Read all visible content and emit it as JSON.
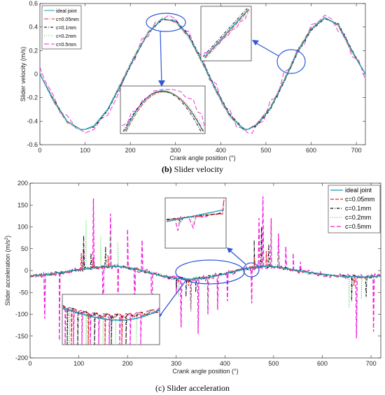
{
  "colors": {
    "ideal": "#1b98b3",
    "c005": "#e8242a",
    "c01": "#000000",
    "c02": "#57d357",
    "c05": "#f01dd8",
    "zoom": "#2f58d6"
  },
  "chart_data": [
    {
      "type": "line",
      "caption_label": "(b)",
      "caption_text": " Slider velocity",
      "xlabel": "Crank angle position (°)",
      "ylabel": "Slider velocity (m/s)",
      "xlim": [
        0,
        720
      ],
      "ylim": [
        -0.6,
        0.6
      ],
      "xticks": [
        0,
        100,
        200,
        300,
        400,
        500,
        600,
        700
      ],
      "yticks": [
        -0.6,
        -0.4,
        -0.2,
        0,
        0.2,
        0.4,
        0.6
      ],
      "ytick_labels": [
        "-0.6",
        "-0.4",
        "-0.2",
        "0",
        "0.2",
        "0.4",
        "0.6"
      ],
      "grid": false,
      "legend_position": "top-left",
      "series": [
        {
          "name": "ideal joint",
          "color_key": "ideal",
          "dash": "",
          "x": [
            0,
            30,
            60,
            90,
            100,
            120,
            150,
            180,
            210,
            240,
            270,
            300,
            330,
            360,
            390,
            420,
            450,
            460,
            480,
            510,
            540,
            570,
            600,
            630,
            660,
            690,
            720
          ],
          "y": [
            0,
            -0.22,
            -0.4,
            -0.47,
            -0.47,
            -0.44,
            -0.3,
            -0.08,
            0.15,
            0.35,
            0.47,
            0.45,
            0.32,
            0.1,
            -0.14,
            -0.35,
            -0.47,
            -0.47,
            -0.43,
            -0.29,
            -0.06,
            0.19,
            0.38,
            0.48,
            0.42,
            0.2,
            0
          ]
        },
        {
          "name": "c=0.05mm",
          "color_key": "c005",
          "dash": "6,2,1,2",
          "x": [
            0,
            30,
            60,
            90,
            100,
            120,
            150,
            180,
            210,
            240,
            270,
            300,
            330,
            360,
            390,
            420,
            450,
            460,
            480,
            510,
            540,
            570,
            600,
            630,
            660,
            690,
            720
          ],
          "y": [
            0,
            -0.23,
            -0.41,
            -0.47,
            -0.47,
            -0.44,
            -0.3,
            -0.07,
            0.16,
            0.36,
            0.47,
            0.44,
            0.31,
            0.09,
            -0.15,
            -0.36,
            -0.47,
            -0.47,
            -0.42,
            -0.28,
            -0.05,
            0.2,
            0.39,
            0.48,
            0.41,
            0.19,
            0
          ]
        },
        {
          "name": "c=0.1mm",
          "color_key": "c01",
          "dash": "4,2,1,2",
          "x": [
            0,
            30,
            60,
            90,
            100,
            120,
            150,
            180,
            210,
            240,
            270,
            300,
            330,
            360,
            390,
            420,
            450,
            460,
            480,
            510,
            540,
            570,
            600,
            630,
            660,
            690,
            720
          ],
          "y": [
            0,
            -0.21,
            -0.4,
            -0.47,
            -0.47,
            -0.45,
            -0.31,
            -0.09,
            0.14,
            0.35,
            0.46,
            0.46,
            0.33,
            0.11,
            -0.13,
            -0.34,
            -0.46,
            -0.47,
            -0.44,
            -0.3,
            -0.07,
            0.18,
            0.37,
            0.47,
            0.43,
            0.21,
            0
          ]
        },
        {
          "name": "c=0.2mm",
          "color_key": "c02",
          "dash": "1,2",
          "x": [
            0,
            30,
            60,
            90,
            100,
            120,
            150,
            180,
            210,
            240,
            270,
            300,
            330,
            360,
            390,
            420,
            450,
            460,
            480,
            510,
            540,
            570,
            600,
            630,
            660,
            690,
            720
          ],
          "y": [
            0,
            -0.24,
            -0.42,
            -0.48,
            -0.47,
            -0.43,
            -0.29,
            -0.06,
            0.17,
            0.37,
            0.48,
            0.44,
            0.3,
            0.08,
            -0.16,
            -0.37,
            -0.48,
            -0.47,
            -0.42,
            -0.27,
            -0.04,
            0.21,
            0.4,
            0.48,
            0.4,
            0.18,
            0
          ]
        },
        {
          "name": "c=0.5mm",
          "color_key": "c05",
          "dash": "7,3",
          "x": [
            0,
            10,
            30,
            45,
            60,
            80,
            90,
            100,
            120,
            135,
            150,
            170,
            180,
            200,
            210,
            225,
            240,
            255,
            270,
            285,
            300,
            315,
            330,
            345,
            360,
            375,
            390,
            405,
            420,
            435,
            450,
            460,
            470,
            480,
            495,
            510,
            525,
            540,
            555,
            570,
            585,
            600,
            615,
            630,
            645,
            660,
            675,
            690,
            705,
            720
          ],
          "y": [
            0.06,
            -0.05,
            -0.18,
            -0.33,
            -0.35,
            -0.46,
            -0.47,
            -0.5,
            -0.47,
            -0.38,
            -0.35,
            -0.2,
            -0.1,
            0.08,
            0.12,
            0.3,
            0.32,
            0.44,
            0.46,
            0.5,
            0.47,
            0.38,
            0.36,
            0.2,
            0.15,
            -0.05,
            -0.08,
            -0.28,
            -0.3,
            -0.45,
            -0.46,
            -0.5,
            -0.5,
            -0.42,
            -0.4,
            -0.22,
            -0.2,
            0.02,
            0.05,
            0.22,
            0.25,
            0.42,
            0.44,
            0.5,
            0.47,
            0.36,
            0.34,
            0.15,
            0.12,
            -0.05
          ]
        }
      ]
    },
    {
      "type": "line",
      "caption_text": "(c) Slider acceleration",
      "xlabel": "Crank angle position (°)",
      "ylabel_main": "Slider acceleration (m/s",
      "ylabel_sup": "2",
      "ylabel_end": ")",
      "xlim": [
        0,
        720
      ],
      "ylim": [
        -200,
        200
      ],
      "xticks": [
        0,
        100,
        200,
        300,
        400,
        500,
        600,
        700
      ],
      "yticks": [
        -200,
        -150,
        -100,
        -50,
        0,
        50,
        100,
        150,
        200
      ],
      "grid": false,
      "legend_position": "top-right",
      "series": [
        {
          "name": "ideal joint",
          "color_key": "ideal",
          "dash": "",
          "x": [
            0,
            30,
            60,
            90,
            120,
            150,
            180,
            210,
            240,
            270,
            300,
            330,
            360,
            390,
            420,
            450,
            480,
            510,
            540,
            570,
            600,
            630,
            660,
            690,
            720
          ],
          "y": [
            -12,
            -10,
            -5,
            0,
            5,
            8,
            10,
            5,
            -3,
            -12,
            -18,
            -20,
            -17,
            -10,
            -2,
            6,
            10,
            8,
            2,
            -4,
            -8,
            -12,
            -14,
            -15,
            -12
          ]
        },
        {
          "name": "c=0.05mm",
          "color_key": "c005",
          "dash": "5,2",
          "x": [],
          "y": []
        },
        {
          "name": "c=0.1mm",
          "color_key": "c01",
          "dash": "4,2,1,2",
          "x": [],
          "y": []
        },
        {
          "name": "c=0.2mm",
          "color_key": "c02",
          "dash": "1,2",
          "x": [],
          "y": []
        },
        {
          "name": "c=0.5mm",
          "color_key": "c05",
          "dash": "6,3",
          "x": [],
          "y": []
        }
      ],
      "spikes": {
        "c05": [
          [
            30,
            -110
          ],
          [
            60,
            -160
          ],
          [
            110,
            50
          ],
          [
            130,
            165
          ],
          [
            150,
            -120
          ],
          [
            165,
            130
          ],
          [
            180,
            -145
          ],
          [
            200,
            95
          ],
          [
            215,
            -150
          ],
          [
            230,
            70
          ],
          [
            250,
            -160
          ],
          [
            300,
            -55
          ],
          [
            310,
            -130
          ],
          [
            330,
            -90
          ],
          [
            345,
            -145
          ],
          [
            365,
            -100
          ],
          [
            385,
            -90
          ],
          [
            405,
            -70
          ],
          [
            455,
            -75
          ],
          [
            470,
            120
          ],
          [
            478,
            170
          ],
          [
            495,
            120
          ],
          [
            510,
            85
          ],
          [
            525,
            55
          ],
          [
            540,
            40
          ],
          [
            555,
            20
          ],
          [
            670,
            -155
          ],
          [
            705,
            -140
          ]
        ],
        "c02": [
          [
            115,
            115
          ],
          [
            145,
            80
          ],
          [
            165,
            85
          ],
          [
            180,
            65
          ],
          [
            305,
            -60
          ],
          [
            330,
            -95
          ],
          [
            365,
            -75
          ],
          [
            495,
            85
          ],
          [
            510,
            40
          ],
          [
            655,
            -85
          ],
          [
            680,
            -65
          ]
        ],
        "c01": [
          [
            110,
            80
          ],
          [
            125,
            40
          ],
          [
            155,
            55
          ],
          [
            300,
            -40
          ],
          [
            320,
            -60
          ],
          [
            340,
            -50
          ],
          [
            460,
            70
          ],
          [
            475,
            100
          ],
          [
            490,
            60
          ],
          [
            660,
            -70
          ],
          [
            690,
            -60
          ]
        ],
        "c005": [
          [
            105,
            40
          ],
          [
            130,
            30
          ],
          [
            160,
            35
          ],
          [
            305,
            -25
          ],
          [
            325,
            -35
          ],
          [
            460,
            30
          ],
          [
            485,
            45
          ],
          [
            665,
            -35
          ]
        ]
      },
      "legend": [
        {
          "name": "ideal joint",
          "color_key": "ideal",
          "dash": ""
        },
        {
          "name": "c=0.05mm",
          "color_key": "c005",
          "dash": "5,2"
        },
        {
          "name": "c=0.1mm",
          "color_key": "c01",
          "dash": "4,2,1,2"
        },
        {
          "name": "c=0.2mm",
          "color_key": "c02",
          "dash": "1,2"
        },
        {
          "name": "c=0.5mm",
          "color_key": "c05",
          "dash": "6,3"
        }
      ]
    }
  ]
}
